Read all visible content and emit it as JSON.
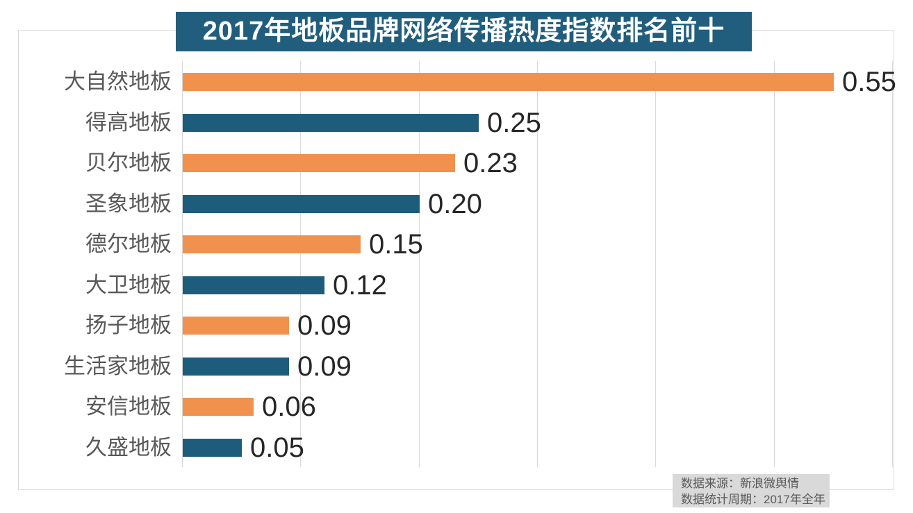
{
  "chart_data": {
    "type": "bar",
    "orientation": "horizontal",
    "title": "2017年地板品牌网络传播热度指数排名前十",
    "categories": [
      "大自然地板",
      "得高地板",
      "贝尔地板",
      "圣象地板",
      "德尔地板",
      "大卫地板",
      "扬子地板",
      "生活家地板",
      "安信地板",
      "久盛地板"
    ],
    "values": [
      0.55,
      0.25,
      0.23,
      0.2,
      0.15,
      0.12,
      0.09,
      0.09,
      0.06,
      0.05
    ],
    "value_labels": [
      "0.55",
      "0.25",
      "0.23",
      "0.20",
      "0.15",
      "0.12",
      "0.09",
      "0.09",
      "0.06",
      "0.05"
    ],
    "xlim": [
      0,
      0.6
    ],
    "gridline_step": 0.1,
    "grid": true,
    "legend": "none",
    "bar_color_pattern": [
      "#F0924D",
      "#1E5C7C"
    ]
  },
  "title_banner": {
    "bg": "#215E7E",
    "fg": "#FFFFFF"
  },
  "source_note": {
    "line1": "数据来源：新浪微舆情",
    "line2": "数据统计周期：2017年全年",
    "bg": "#D9D9D9",
    "fg": "#595959"
  },
  "colors": {
    "border": "#D9D9D9",
    "grid": "#D9D9D9",
    "axis": "#D9D9D9",
    "category_label": "#595959",
    "value_label": "#262626",
    "background": "#FFFFFF"
  }
}
